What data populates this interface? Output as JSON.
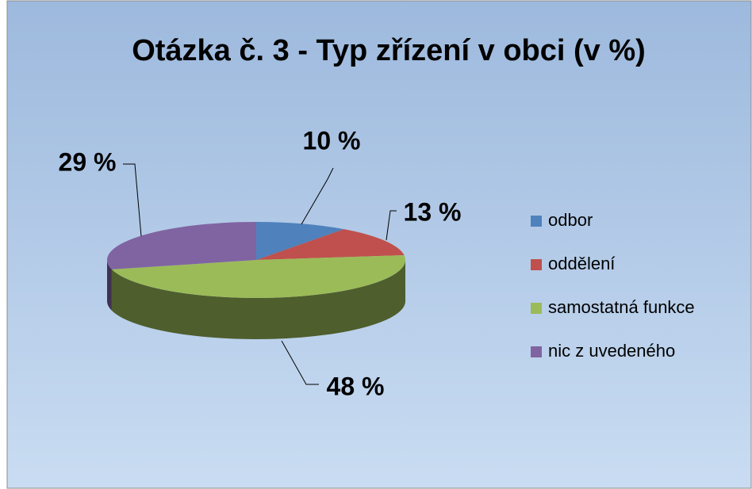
{
  "chart_data": {
    "type": "pie3d",
    "title": "Otázka č. 3 - Typ zřízení v obci (v %)",
    "categories": [
      "odbor",
      "oddělení",
      "samostatná funkce",
      "nic z uvedeného"
    ],
    "values": [
      10,
      13,
      48,
      29
    ],
    "value_labels": [
      "10 %",
      "13 %",
      "48 %",
      "29 %"
    ],
    "colors": [
      "#4f81bd",
      "#c0504d",
      "#9bbb59",
      "#8064a2"
    ],
    "legend": "right"
  }
}
